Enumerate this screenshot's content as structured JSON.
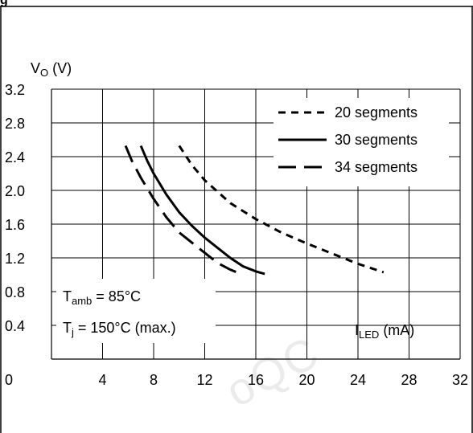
{
  "figure": {
    "title_fragment": "g",
    "watermark_text": "oQC"
  },
  "chart_data": {
    "type": "line",
    "ylabel_main": "V",
    "ylabel_sub": "O",
    "ylabel_unit": " (V)",
    "xlabel_main": "I",
    "xlabel_sub": "LED",
    "xlabel_unit": " (mA)",
    "xlim": [
      0,
      32
    ],
    "ylim": [
      0,
      3.2
    ],
    "x_ticks": [
      0,
      4,
      8,
      12,
      16,
      20,
      24,
      28,
      32
    ],
    "x_tick_labels": [
      "0",
      "4",
      "8",
      "12",
      "16",
      "20",
      "24",
      "28",
      "32"
    ],
    "y_ticks": [
      0.4,
      0.8,
      1.2,
      1.6,
      2.0,
      2.4,
      2.8,
      3.2
    ],
    "y_tick_labels": [
      "0.4",
      "0.8",
      "1.2",
      "1.6",
      "2.0",
      "2.4",
      "2.8",
      "3.2"
    ],
    "grid": true,
    "legend_position": "top-right",
    "series": [
      {
        "name": "20 segments",
        "style": "dotted",
        "points": [
          [
            10.0,
            2.53
          ],
          [
            11.0,
            2.3
          ],
          [
            12.0,
            2.12
          ],
          [
            14.0,
            1.85
          ],
          [
            16.0,
            1.66
          ],
          [
            18.0,
            1.5
          ],
          [
            20.0,
            1.37
          ],
          [
            22.0,
            1.25
          ],
          [
            24.0,
            1.13
          ],
          [
            26.0,
            1.03
          ]
        ]
      },
      {
        "name": "30 segments",
        "style": "solid",
        "points": [
          [
            7.0,
            2.53
          ],
          [
            7.5,
            2.35
          ],
          [
            8.0,
            2.2
          ],
          [
            9.0,
            1.95
          ],
          [
            10.0,
            1.74
          ],
          [
            11.0,
            1.58
          ],
          [
            12.0,
            1.44
          ],
          [
            13.0,
            1.32
          ],
          [
            14.0,
            1.2
          ],
          [
            15.0,
            1.1
          ],
          [
            16.0,
            1.04
          ],
          [
            16.7,
            1.01
          ]
        ]
      },
      {
        "name": "34 segments",
        "style": "dashed",
        "points": [
          [
            5.8,
            2.53
          ],
          [
            6.3,
            2.35
          ],
          [
            7.0,
            2.15
          ],
          [
            8.0,
            1.9
          ],
          [
            9.0,
            1.68
          ],
          [
            10.0,
            1.5
          ],
          [
            11.0,
            1.38
          ],
          [
            12.0,
            1.26
          ],
          [
            13.0,
            1.14
          ],
          [
            14.0,
            1.06
          ],
          [
            14.5,
            1.03
          ]
        ]
      }
    ],
    "annotations": [
      {
        "id": "tamb",
        "prefix": "T",
        "sub": "amb",
        "suffix": " = 85°C"
      },
      {
        "id": "tj",
        "prefix": "T",
        "sub": "j",
        "suffix": " = 150°C (max.)"
      }
    ]
  }
}
